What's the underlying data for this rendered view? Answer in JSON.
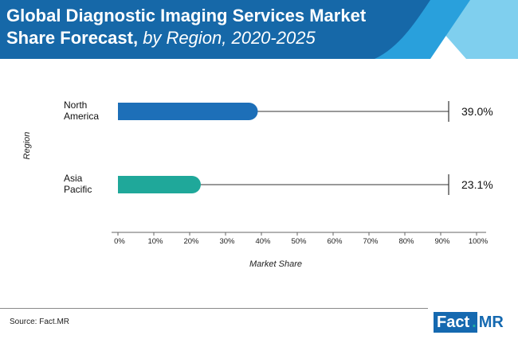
{
  "title": {
    "line1": "Global Diagnostic Imaging Services Market",
    "line2_bold": "Share Forecast,",
    "line2_italic": " by Region, 2020-2025"
  },
  "colors": {
    "header_blue": "#1668a8",
    "header_light1": "#29a0dc",
    "header_light2": "#7fcfee",
    "bar_north_america": "#1d6fb8",
    "bar_asia_pacific": "#1fa89a"
  },
  "chart_data": {
    "type": "bar",
    "orientation": "horizontal",
    "categories": [
      "North\nAmerica",
      "Asia\nPacific"
    ],
    "values": [
      39.0,
      23.1
    ],
    "value_labels": [
      "39.0%",
      "23.1%"
    ],
    "xlabel": "Market Share",
    "ylabel": "Region",
    "xlim": [
      0,
      100
    ],
    "xticks": [
      "0%",
      "10%",
      "20%",
      "30%",
      "40%",
      "50%",
      "60%",
      "70%",
      "80%",
      "90%",
      "100%"
    ],
    "grid": false
  },
  "footer": {
    "source": "Source: Fact.MR",
    "logo_part1": "Fact",
    "logo_dot": ".",
    "logo_part2": "MR"
  }
}
